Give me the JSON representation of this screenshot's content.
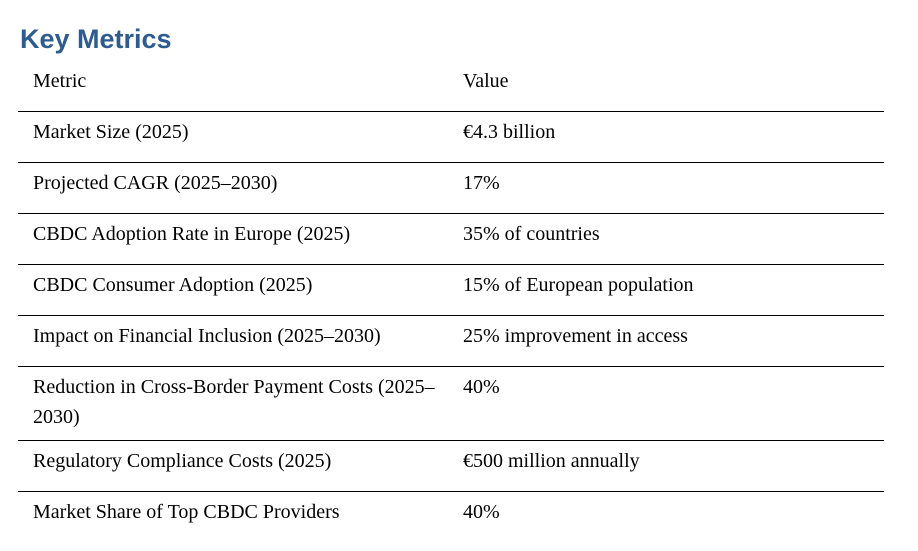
{
  "page": {
    "title": "Key Metrics",
    "title_color": "#2E5C8E",
    "text_color": "#000000",
    "rule_color": "#000000"
  },
  "table": {
    "headers": [
      "Metric",
      "Value"
    ],
    "rows": [
      {
        "metric": "Market Size (2025)",
        "value": "€4.3 billion"
      },
      {
        "metric": "Projected CAGR (2025–2030)",
        "value": "17%"
      },
      {
        "metric": "CBDC Adoption Rate in Europe (2025)",
        "value": "35% of countries"
      },
      {
        "metric": "CBDC Consumer Adoption (2025)",
        "value": "15% of European population"
      },
      {
        "metric": "Impact on Financial Inclusion (2025–2030)",
        "value": "25% improvement in access"
      },
      {
        "metric": "Reduction in Cross-Border Payment Costs (2025–2030)",
        "value": "40%"
      },
      {
        "metric": "Regulatory Compliance Costs (2025)",
        "value": "€500 million annually"
      },
      {
        "metric": "Market Share of Top CBDC Providers",
        "value": "40%"
      }
    ]
  }
}
